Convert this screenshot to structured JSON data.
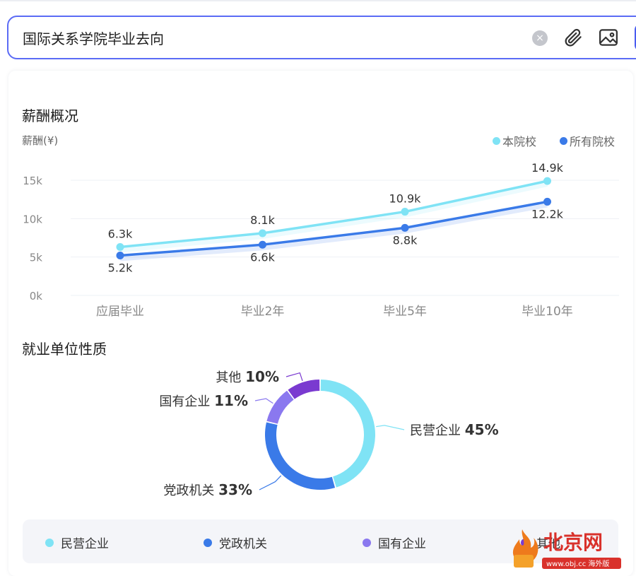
{
  "search": {
    "value": "国际关系学院毕业去向",
    "clear_icon": "×"
  },
  "salary": {
    "title": "薪酬概况",
    "axis_label": "薪酬(¥)",
    "legend": [
      {
        "name": "本院校",
        "color": "#7fe3f5"
      },
      {
        "name": "所有院校",
        "color": "#3a7ae8"
      }
    ]
  },
  "chart_data": [
    {
      "type": "line",
      "title": "薪酬概况",
      "ylabel": "薪酬(¥)",
      "categories": [
        "应届毕业",
        "毕业2年",
        "毕业5年",
        "毕业10年"
      ],
      "y_ticks": [
        "0k",
        "5k",
        "10k",
        "15k"
      ],
      "ylim": [
        0,
        15000
      ],
      "grid": true,
      "legend_position": "top-right",
      "series": [
        {
          "name": "本院校",
          "color": "#7fe3f5",
          "values": [
            6300,
            8100,
            10900,
            14900
          ],
          "labels": [
            "6.3k",
            "8.1k",
            "10.9k",
            "14.9k"
          ]
        },
        {
          "name": "所有院校",
          "color": "#3a7ae8",
          "values": [
            5200,
            6600,
            8800,
            12200
          ],
          "labels": [
            "5.2k",
            "6.6k",
            "8.8k",
            "12.2k"
          ]
        }
      ]
    },
    {
      "type": "pie",
      "title": "就业单位性质",
      "slices": [
        {
          "name": "民营企业",
          "value": 45,
          "label": "45%",
          "color": "#7fe3f5"
        },
        {
          "name": "党政机关",
          "value": 33,
          "label": "33%",
          "color": "#3a7ae8"
        },
        {
          "name": "国有企业",
          "value": 11,
          "label": "11%",
          "color": "#8a78ef"
        },
        {
          "name": "其他",
          "value": 10,
          "label": "10%",
          "color": "#7a3ad0"
        }
      ]
    }
  ],
  "employer": {
    "title": "就业单位性质",
    "legend": [
      {
        "name": "民营企业",
        "color": "#7fe3f5"
      },
      {
        "name": "党政机关",
        "color": "#3a7ae8"
      },
      {
        "name": "国有企业",
        "color": "#8a78ef"
      },
      {
        "name": "其他",
        "color": "#7a3ad0"
      }
    ]
  },
  "watermark": {
    "text": "北京网",
    "url": "www.obj.cc 海外版"
  }
}
